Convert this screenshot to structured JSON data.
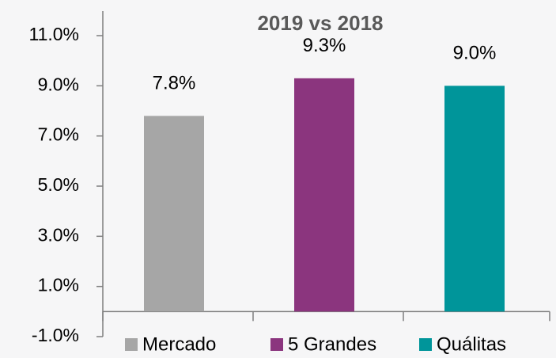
{
  "chart_data": {
    "type": "bar",
    "title": "2019 vs 2018",
    "categories": [
      "Mercado",
      "5 Grandes",
      "Quálitas"
    ],
    "values": [
      7.8,
      9.3,
      9.0
    ],
    "value_labels": [
      "7.8%",
      "9.3%",
      "9.0%"
    ],
    "colors": [
      "#a6a6a6",
      "#8b357e",
      "#00959a"
    ],
    "ylim": [
      -1,
      11
    ],
    "yticks": [
      {
        "value": -1,
        "label": "-1.0%"
      },
      {
        "value": 1,
        "label": "1.0%"
      },
      {
        "value": 3,
        "label": "3.0%"
      },
      {
        "value": 5,
        "label": "5.0%"
      },
      {
        "value": 7,
        "label": "7.0%"
      },
      {
        "value": 9,
        "label": "9.0%"
      },
      {
        "value": 11,
        "label": "11.0%"
      }
    ],
    "grid": false,
    "legend": "bottom"
  }
}
